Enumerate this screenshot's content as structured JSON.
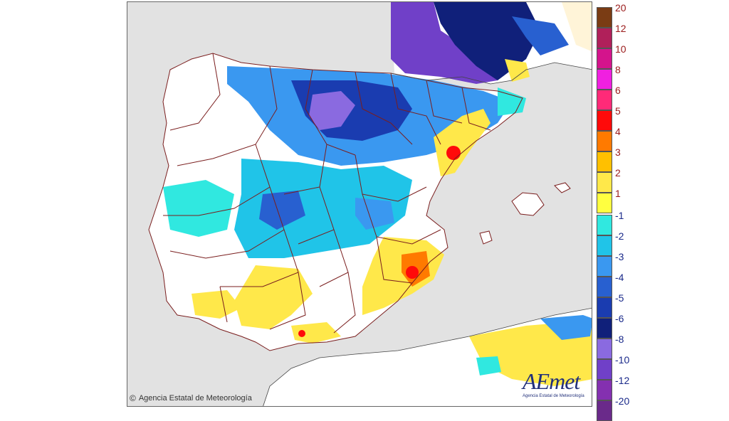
{
  "credit": {
    "symbol": "©",
    "text": "Agencia Estatal de Meteorología"
  },
  "logo": {
    "wordmark": "AEmet",
    "subtitle": "Agencia Estatal de Meteorología"
  },
  "legend": {
    "positive": [
      {
        "label": "20",
        "color": "#7a3c14"
      },
      {
        "label": "12",
        "color": "#b0205a"
      },
      {
        "label": "10",
        "color": "#d4148c"
      },
      {
        "label": "8",
        "color": "#f020e0"
      },
      {
        "label": "6",
        "color": "#ff2a78"
      },
      {
        "label": "5",
        "color": "#ff0a0a"
      },
      {
        "label": "4",
        "color": "#ff7a00"
      },
      {
        "label": "3",
        "color": "#ffc000"
      },
      {
        "label": "2",
        "color": "#ffe84a"
      },
      {
        "label": "1",
        "color": "#ffff40"
      }
    ],
    "negative": [
      {
        "label": "-1",
        "color": "#30e8e0"
      },
      {
        "label": "-2",
        "color": "#20c4e8"
      },
      {
        "label": "-3",
        "color": "#3a98f0"
      },
      {
        "label": "-4",
        "color": "#2860d0"
      },
      {
        "label": "-5",
        "color": "#1a3cb0"
      },
      {
        "label": "-6",
        "color": "#10207a"
      },
      {
        "label": "-8",
        "color": "#8a6ae0"
      },
      {
        "label": "-10",
        "color": "#7040c8"
      },
      {
        "label": "-12",
        "color": "#8430b0"
      },
      {
        "label": "-20",
        "color": "#6a2a8a"
      }
    ],
    "positive_label_color": "#9a1a1a",
    "negative_label_color": "#1a2a8a"
  },
  "map_colors": {
    "sea": "#e2e2e2",
    "land": "#ffffff",
    "border": "#7a1e1e"
  }
}
